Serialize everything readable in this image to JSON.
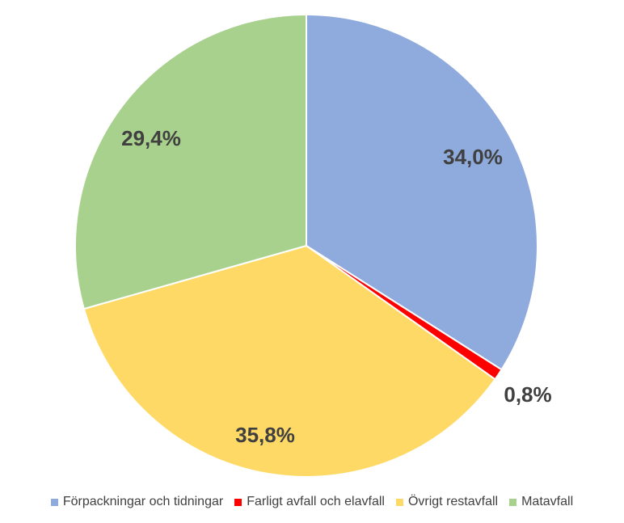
{
  "chart_data": {
    "type": "pie",
    "slices": [
      {
        "label": "Förpackningar och tidningar",
        "value": 34.0,
        "display": "34,0%",
        "color": "#8FAADC"
      },
      {
        "label": "Farligt avfall och elavfall",
        "value": 0.8,
        "display": "0,8%",
        "color": "#FF0000"
      },
      {
        "label": "Övrigt restavfall",
        "value": 35.8,
        "display": "35,8%",
        "color": "#FFD966"
      },
      {
        "label": "Matavfall",
        "value": 29.4,
        "display": "29,4%",
        "color": "#A9D18E"
      }
    ],
    "start_angle": "12 o'clock",
    "direction": "clockwise",
    "legend": "bottom"
  }
}
